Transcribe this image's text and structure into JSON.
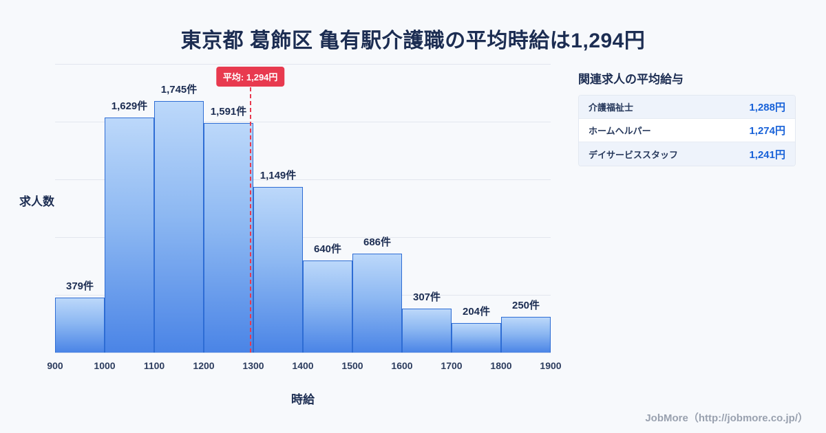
{
  "title": "東京都 葛飾区 亀有駅介護職の平均時給は1,294円",
  "chart_data": {
    "type": "bar",
    "title": "東京都 葛飾区 亀有駅介護職の平均時給は1,294円",
    "xlabel": "時給",
    "ylabel": "求人数",
    "x_ticks": [
      900,
      1000,
      1100,
      1200,
      1300,
      1400,
      1500,
      1600,
      1700,
      1800,
      1900
    ],
    "bins": [
      {
        "range": [
          900,
          1000
        ],
        "count": 379,
        "label": "379件"
      },
      {
        "range": [
          1000,
          1100
        ],
        "count": 1629,
        "label": "1,629件"
      },
      {
        "range": [
          1100,
          1200
        ],
        "count": 1745,
        "label": "1,745件"
      },
      {
        "range": [
          1200,
          1300
        ],
        "count": 1591,
        "label": "1,591件"
      },
      {
        "range": [
          1300,
          1400
        ],
        "count": 1149,
        "label": "1,149件"
      },
      {
        "range": [
          1400,
          1500
        ],
        "count": 640,
        "label": "640件"
      },
      {
        "range": [
          1500,
          1600
        ],
        "count": 686,
        "label": "686件"
      },
      {
        "range": [
          1600,
          1700
        ],
        "count": 307,
        "label": "307件"
      },
      {
        "range": [
          1700,
          1800
        ],
        "count": 204,
        "label": "204件"
      },
      {
        "range": [
          1800,
          1900
        ],
        "count": 250,
        "label": "250件"
      }
    ],
    "average": 1294,
    "average_label": "平均: 1,294円",
    "ylim": [
      0,
      2000
    ],
    "grid": true,
    "legend": "none",
    "colors": {
      "bar_top": "#bcd8fa",
      "bar_bottom": "#4a84e6",
      "bar_border": "#2d6cd4",
      "average_line": "#e83a4f",
      "text": "#1c2d52"
    }
  },
  "panel": {
    "title": "関連求人の平均給与",
    "rows": [
      {
        "label": "介護福祉士",
        "value": "1,288円"
      },
      {
        "label": "ホームヘルパー",
        "value": "1,274円"
      },
      {
        "label": "デイサービススタッフ",
        "value": "1,241円"
      }
    ]
  },
  "footer": {
    "text": "JobMore（http://jobmore.co.jp/）"
  }
}
